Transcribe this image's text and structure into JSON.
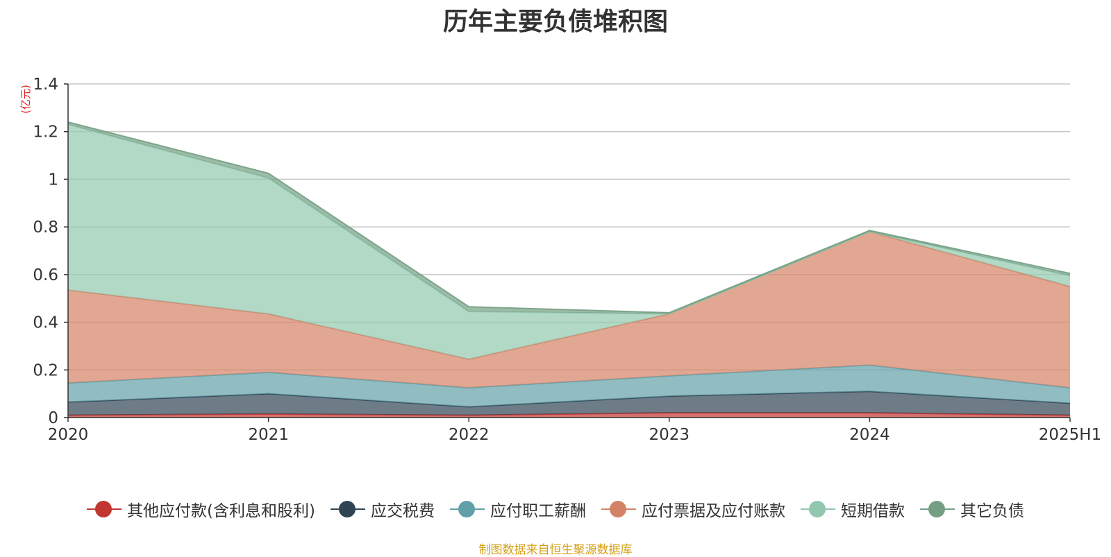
{
  "chart_data": {
    "type": "area",
    "stacked": true,
    "title": "历年主要负债堆积图",
    "unit_label": "(亿元)",
    "categories": [
      "2020",
      "2021",
      "2022",
      "2023",
      "2024",
      "2025H1"
    ],
    "ylim": [
      0,
      1.4
    ],
    "yticks": [
      0,
      0.2,
      0.4,
      0.6,
      0.8,
      1,
      1.2,
      1.4
    ],
    "ytick_labels": [
      "0",
      "0.2",
      "0.4",
      "0.6",
      "0.8",
      "1",
      "1.2",
      "1.4"
    ],
    "grid": true,
    "legend_position": "bottom",
    "series": [
      {
        "name": "其他应付款(含利息和股利)",
        "color": "#c23531",
        "values": [
          0.01,
          0.015,
          0.01,
          0.02,
          0.02,
          0.01
        ]
      },
      {
        "name": "应交税费",
        "color": "#2f4554",
        "values": [
          0.055,
          0.085,
          0.035,
          0.07,
          0.09,
          0.05
        ]
      },
      {
        "name": "应付职工薪酬",
        "color": "#61a0a8",
        "values": [
          0.08,
          0.09,
          0.08,
          0.085,
          0.11,
          0.065
        ]
      },
      {
        "name": "应付票据及应付账款",
        "color": "#d48265",
        "values": [
          0.39,
          0.245,
          0.12,
          0.26,
          0.56,
          0.425
        ]
      },
      {
        "name": "短期借款",
        "color": "#91c7ae",
        "values": [
          0.695,
          0.57,
          0.2,
          0,
          0,
          0.045
        ]
      },
      {
        "name": "其它负债",
        "color": "#749f83",
        "values": [
          0.01,
          0.02,
          0.02,
          0.005,
          0.005,
          0.01
        ]
      }
    ]
  },
  "footer": {
    "source": "制图数据来自恒生聚源数据库"
  }
}
